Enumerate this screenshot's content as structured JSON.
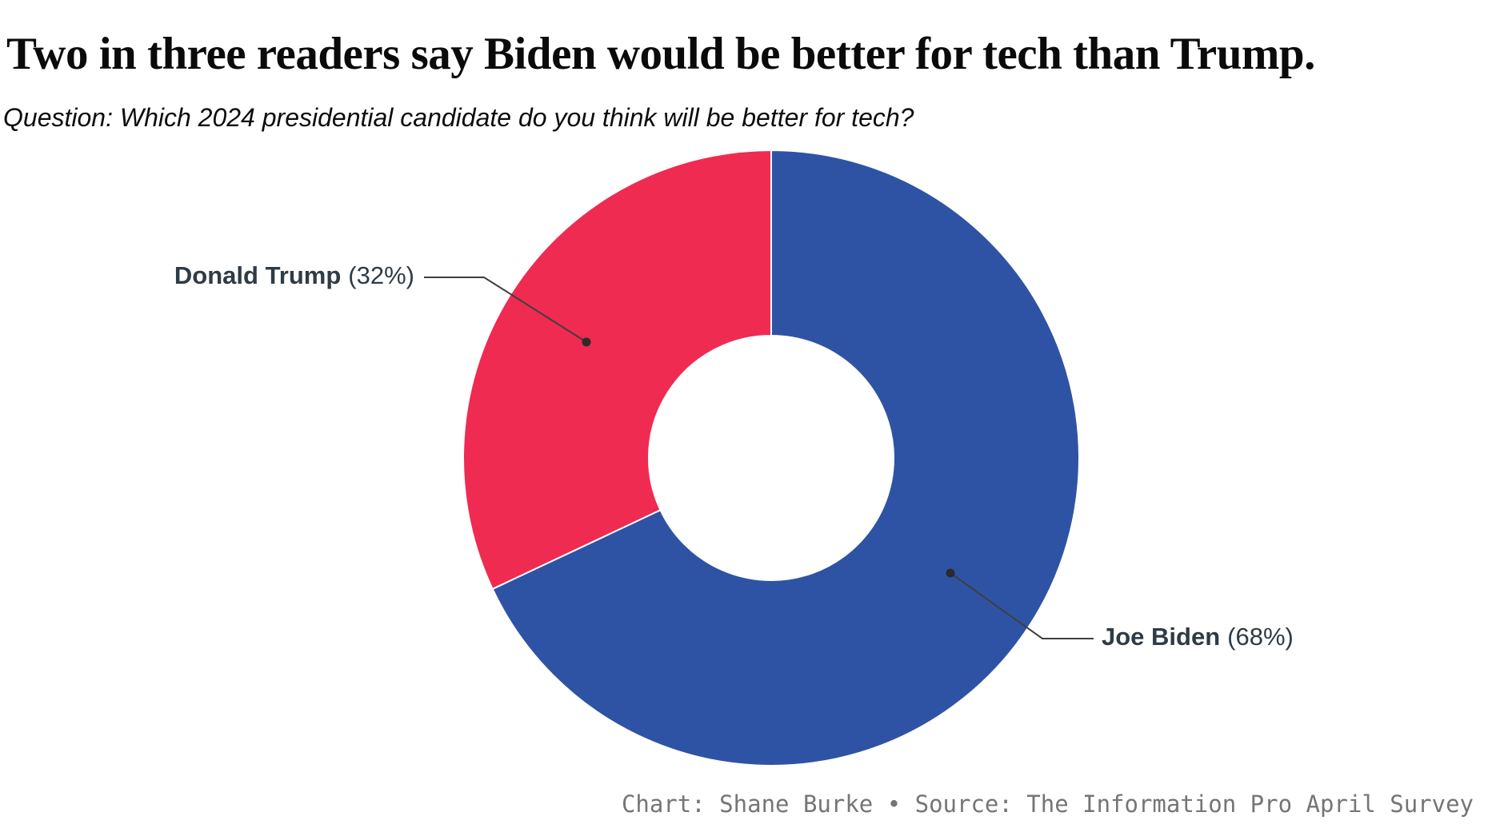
{
  "header": {
    "title": "Two in three readers say Biden would be better for tech than Trump.",
    "subtitle": "Question: Which 2024 presidential candidate do you think will be better for tech?"
  },
  "chart_data": {
    "type": "pie",
    "subtype": "donut",
    "title": "Two in three readers say Biden would be better for tech than Trump.",
    "question": "Question: Which 2024 presidential candidate do you think will be better for tech?",
    "start_position": "top",
    "direction": "clockwise",
    "inner_radius_ratio": 0.4,
    "slices": [
      {
        "label": "Joe Biden",
        "value": 68,
        "pct_label": "(68%)",
        "color": "#2F53A4"
      },
      {
        "label": "Donald Trump",
        "value": 32,
        "pct_label": "(32%)",
        "color": "#EF2B52"
      }
    ],
    "legend_position": "callout-labels",
    "colors": {
      "biden_blue": "#2F53A4",
      "trump_red": "#EF2B52",
      "leader_line": "#3f3f3f"
    }
  },
  "footer": {
    "credit": "Chart: Shane Burke • Source: The Information Pro April Survey"
  }
}
